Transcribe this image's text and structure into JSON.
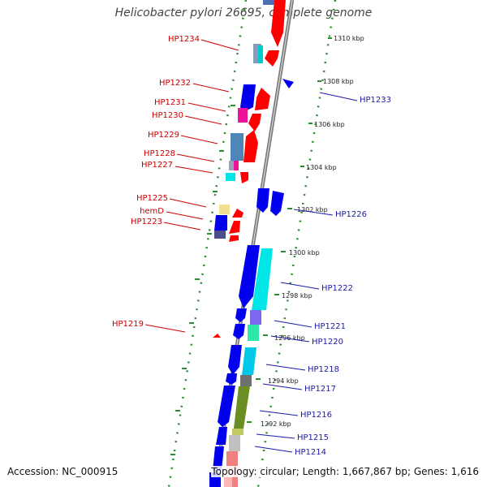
{
  "title": "Helicobacter pylori 26695, complete genome",
  "footer": {
    "accession": "Accession: NC_000915",
    "summary": "Topology: circular; Length: 1,667,867 bp; Genes: 1,616"
  },
  "colors": {
    "backbone": "#8c8c8c",
    "tick": "#2e8b2e",
    "left_label": "#cc0000",
    "right_label": "#1a1aa6",
    "forward": "#ff0000",
    "reverse": "#0000ee"
  },
  "kbp_ticks": [
    {
      "label": "1310 kbp"
    },
    {
      "label": "1308 kbp"
    },
    {
      "label": "1306 kbp"
    },
    {
      "label": "1304 kbp"
    },
    {
      "label": "1302 kbp"
    },
    {
      "label": "1300 kbp"
    },
    {
      "label": "1298 kbp"
    },
    {
      "label": "1296 kbp"
    },
    {
      "label": "1294 kbp"
    },
    {
      "label": "1292 kbp"
    }
  ],
  "left_genes": [
    {
      "label": "HP1234"
    },
    {
      "label": "HP1232"
    },
    {
      "label": "HP1231"
    },
    {
      "label": "HP1230"
    },
    {
      "label": "HP1229"
    },
    {
      "label": "HP1228"
    },
    {
      "label": "HP1227"
    },
    {
      "label": "HP1225"
    },
    {
      "label": "hemD"
    },
    {
      "label": "HP1223"
    },
    {
      "label": "HP1219"
    }
  ],
  "right_genes": [
    {
      "label": "HP1233"
    },
    {
      "label": "HP1226"
    },
    {
      "label": "HP1222"
    },
    {
      "label": "HP1221"
    },
    {
      "label": "HP1220"
    },
    {
      "label": "HP1218"
    },
    {
      "label": "HP1217"
    },
    {
      "label": "HP1216"
    },
    {
      "label": "HP1215"
    },
    {
      "label": "HP1214"
    }
  ]
}
